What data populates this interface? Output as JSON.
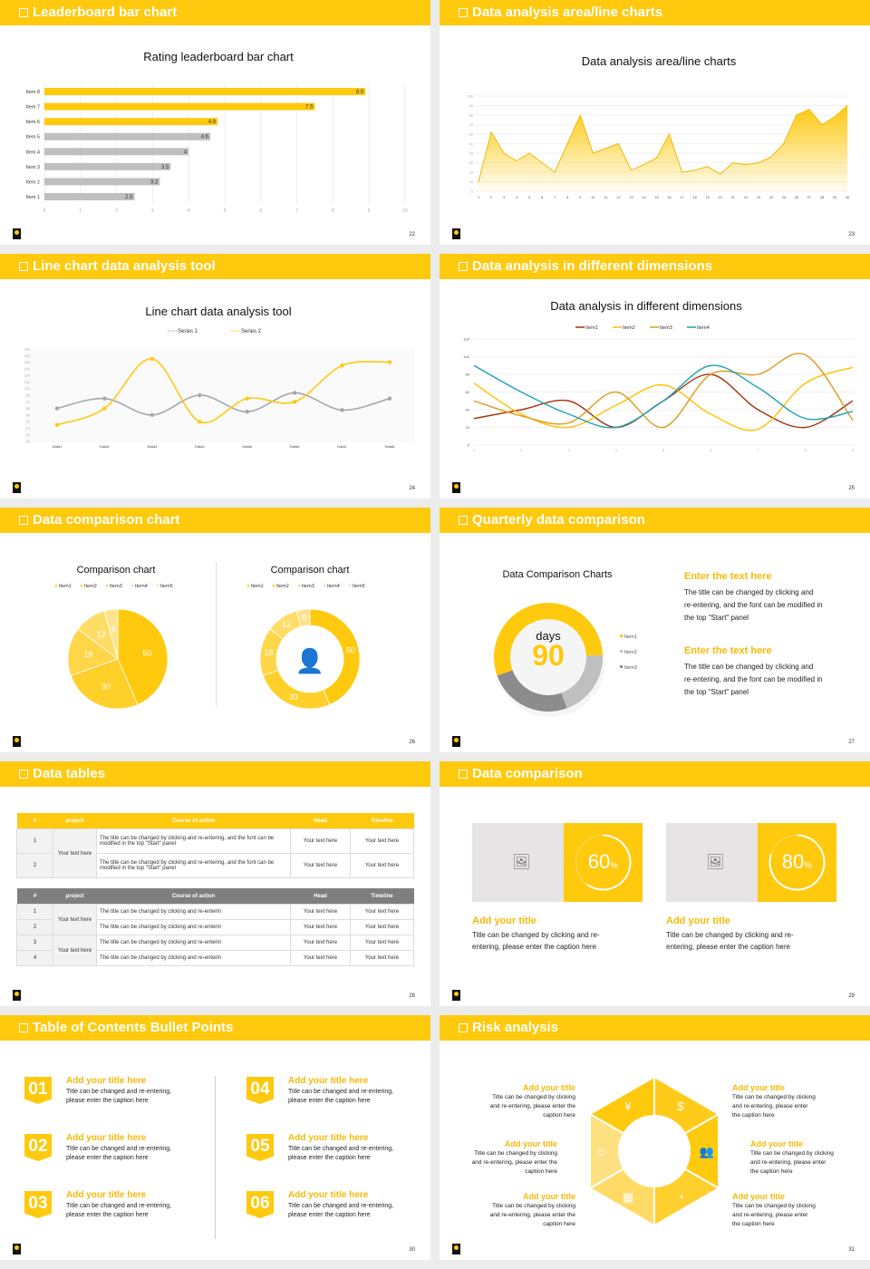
{
  "colors": {
    "accent": "#FFC90E",
    "gray": "#BFBFBF",
    "dark_gray": "#8C8C8C"
  },
  "slides": [
    {
      "header": "Leaderboard bar chart",
      "page": "22"
    },
    {
      "header": "Data analysis area/line charts",
      "page": "23"
    },
    {
      "header": "Line chart data analysis tool",
      "page": "24"
    },
    {
      "header": "Data analysis in different dimensions",
      "page": "25"
    },
    {
      "header": "Data comparison chart",
      "page": "26"
    },
    {
      "header": "Quarterly data comparison",
      "page": "27"
    },
    {
      "header": "Data tables",
      "page": "28"
    },
    {
      "header": "Data comparison",
      "page": "29"
    },
    {
      "header": "Table of Contents Bullet Points",
      "page": "30"
    },
    {
      "header": "Risk analysis",
      "page": "31"
    }
  ],
  "chart_data": [
    {
      "type": "bar",
      "orientation": "horizontal",
      "title": "Rating leaderboard bar chart",
      "categories": [
        "Item 1",
        "Item 2",
        "Item 3",
        "Item 4",
        "Item 5",
        "Item 6",
        "Item 7",
        "Item 8"
      ],
      "values": [
        2.5,
        3.2,
        3.5,
        4,
        4.6,
        4.8,
        7.5,
        8.9
      ],
      "bar_colors": [
        "#BFBFBF",
        "#BFBFBF",
        "#BFBFBF",
        "#BFBFBF",
        "#BFBFBF",
        "#FFC90E",
        "#FFC90E",
        "#FFC90E"
      ],
      "xlim": [
        0,
        10
      ],
      "xticks": [
        0,
        1,
        2,
        3,
        4,
        5,
        6,
        7,
        8,
        9,
        10
      ],
      "grid": true
    },
    {
      "type": "area",
      "title": "Data analysis area/line charts",
      "x": [
        1,
        2,
        3,
        4,
        5,
        6,
        7,
        8,
        9,
        10,
        11,
        12,
        13,
        14,
        15,
        16,
        17,
        18,
        19,
        20,
        21,
        22,
        23,
        24,
        25,
        26,
        27,
        28,
        29,
        30
      ],
      "values": [
        10,
        62,
        40,
        32,
        40,
        30,
        20,
        50,
        80,
        40,
        45,
        50,
        22,
        28,
        35,
        60,
        20,
        22,
        26,
        18,
        30,
        28,
        30,
        36,
        50,
        80,
        86,
        70,
        78,
        90
      ],
      "ylim": [
        0,
        100
      ],
      "yticks": [
        0,
        10,
        20,
        30,
        40,
        50,
        60,
        70,
        80,
        90,
        100
      ],
      "color": "#FFC90E",
      "grid": true
    },
    {
      "type": "line",
      "title": "Line chart data analysis tool",
      "smooth": true,
      "categories": [
        "Data1",
        "Data2",
        "Data3",
        "Data4",
        "Data5",
        "Data6",
        "Data7",
        "Data8"
      ],
      "series": [
        {
          "name": "Series 1",
          "color": "#A6A6A6",
          "values": [
            50,
            80,
            30,
            90,
            40,
            97,
            45,
            80
          ]
        },
        {
          "name": "Series 2",
          "color": "#FFC90E",
          "values": [
            0,
            50,
            200,
            10,
            80,
            70,
            180,
            190
          ]
        }
      ],
      "ylim": [
        -50,
        230
      ],
      "yticks": [
        230,
        210,
        190,
        170,
        150,
        130,
        110,
        90,
        70,
        50,
        30,
        10,
        -10,
        -30,
        -50
      ],
      "legend": "top"
    },
    {
      "type": "line",
      "title": "Data analysis in different dimensions",
      "smooth": true,
      "categories": [
        1,
        2,
        3,
        4,
        5,
        6,
        7,
        8,
        9
      ],
      "series": [
        {
          "name": "Item1",
          "color": "#A3320B",
          "values": [
            30,
            40,
            50,
            20,
            50,
            80,
            40,
            20,
            50
          ]
        },
        {
          "name": "Item2",
          "color": "#FFC000",
          "values": [
            70,
            35,
            20,
            45,
            68,
            35,
            18,
            70,
            88
          ]
        },
        {
          "name": "Item3",
          "color": "#DE9A1E",
          "values": [
            50,
            33,
            25,
            60,
            20,
            80,
            80,
            102,
            28
          ]
        },
        {
          "name": "Item4",
          "color": "#1BA3B8",
          "values": [
            90,
            60,
            35,
            20,
            50,
            90,
            65,
            30,
            38
          ]
        }
      ],
      "ylim": [
        0,
        120
      ],
      "yticks": [
        0,
        20,
        40,
        60,
        80,
        100,
        120
      ],
      "legend": "top",
      "grid": true
    },
    {
      "type": "pie",
      "title": "Comparison chart",
      "labels": [
        "Item1",
        "Item2",
        "Item3",
        "Item4",
        "Item5"
      ],
      "values": [
        50,
        30,
        18,
        12,
        5
      ],
      "colors": [
        "#FFC90E",
        "#FFCF2A",
        "#FFD648",
        "#FFDC66",
        "#FFE38A"
      ],
      "legend": "top"
    },
    {
      "type": "pie",
      "variant": "donut",
      "title": "Comparison chart",
      "labels": [
        "Item1",
        "Item2",
        "Item3",
        "Item4",
        "Item5"
      ],
      "values": [
        50,
        30,
        18,
        12,
        5
      ],
      "colors": [
        "#FFC90E",
        "#FFCF2A",
        "#FFD648",
        "#FFDC66",
        "#FFE38A"
      ],
      "legend": "top",
      "center_icon": "user-presentation-icon"
    },
    {
      "type": "pie",
      "variant": "donut",
      "title": "Data Comparison Charts",
      "labels": [
        "Item1",
        "Item2",
        "Item3"
      ],
      "values": [
        55,
        20,
        25
      ],
      "colors": [
        "#FFC90E",
        "#BFBFBF",
        "#8C8C8C"
      ],
      "legend": "right",
      "center_label": "days",
      "center_value": "90"
    }
  ],
  "quarterly": {
    "blocks": [
      {
        "title": "Enter the text here",
        "lines": [
          "The title can be changed by clicking and",
          "re-entering, and the font can be modified in",
          "the top \"Start\" panel"
        ]
      },
      {
        "title": "Enter the text here",
        "lines": [
          "The title can be changed by clicking and",
          "re-entering, and the font can be modified in",
          "the top \"Start\" panel"
        ]
      }
    ]
  },
  "tables": {
    "headers": [
      "#",
      "project",
      "Course of action",
      "Head",
      "Timeline"
    ],
    "table1": {
      "project": "Your text here",
      "rows": [
        {
          "n": "1",
          "action": "The title can be changed by clicking and re-entering, and the font can be modified in the top \"Start\" panel",
          "head": "Your text here",
          "timeline": "Your text here"
        },
        {
          "n": "2",
          "action": "The title can be changed by clicking and re-entering, and the font can be modified in the top \"Start\" panel",
          "head": "Your text here",
          "timeline": "Your text here"
        }
      ]
    },
    "table2": {
      "projects": [
        "Your text here",
        "Your text here"
      ],
      "rows": [
        {
          "n": "1",
          "action": "The title can be changed by clicking and re-enterin",
          "head": "Your text here",
          "timeline": "Your text here"
        },
        {
          "n": "2",
          "action": "The title can be changed by clicking and re-enterin",
          "head": "Your text here",
          "timeline": "Your text here"
        },
        {
          "n": "3",
          "action": "The title can be changed by clicking and re-enterin",
          "head": "Your text here",
          "timeline": "Your text here"
        },
        {
          "n": "4",
          "action": "The title can be changed by clicking and re-enterin",
          "head": "Your text here",
          "timeline": "Your text here"
        }
      ]
    }
  },
  "comparison": {
    "cards": [
      {
        "percent": 60,
        "value": "60",
        "unit": "%",
        "title": "Add your title",
        "lines": [
          "Title can be changed by clicking and re-",
          "entering, please enter the caption here"
        ],
        "icon": "add-image-icon"
      },
      {
        "percent": 80,
        "value": "80",
        "unit": "%",
        "title": "Add your title",
        "lines": [
          "Title can be changed by clicking and re-",
          "entering, please enter the caption here"
        ],
        "icon": "add-image-icon"
      }
    ]
  },
  "toc": {
    "items": [
      {
        "num": "01",
        "title": "Add your title here",
        "lines": [
          "Title can be changed and re-entering,",
          "please enter the caption here"
        ]
      },
      {
        "num": "02",
        "title": "Add your title here",
        "lines": [
          "Title can be changed and re-entering,",
          "please enter the caption here"
        ]
      },
      {
        "num": "03",
        "title": "Add your title here",
        "lines": [
          "Title can be changed and re-entering,",
          "please enter the caption here"
        ]
      },
      {
        "num": "04",
        "title": "Add your title here",
        "lines": [
          "Title can be changed and re-entering,",
          "please enter the caption here"
        ]
      },
      {
        "num": "05",
        "title": "Add your title here",
        "lines": [
          "Title can be changed and re-entering,",
          "please enter the caption here"
        ]
      },
      {
        "num": "06",
        "title": "Add your title here",
        "lines": [
          "Title can be changed and re-entering,",
          "please enter the caption here"
        ]
      }
    ]
  },
  "risk": {
    "left": [
      {
        "title": "Add your title",
        "lines": [
          "Title can be changed by clicking",
          "and re-entering, please enter the",
          "caption here"
        ]
      },
      {
        "title": "Add your title",
        "lines": [
          "Title can be changed by clicking",
          "and re-entering, please enter the",
          "caption here"
        ]
      },
      {
        "title": "Add your title",
        "lines": [
          "Title can be changed by clicking",
          "and re-entering, please enter the",
          "caption here"
        ]
      }
    ],
    "right": [
      {
        "title": "Add your title",
        "lines": [
          "Title can be changed by clicking",
          "and re-entering, please enter",
          "the caption here"
        ]
      },
      {
        "title": "Add your title",
        "lines": [
          "Title can be changed by clicking",
          "and re-entering, please enter",
          "the caption here"
        ]
      },
      {
        "title": "Add your title",
        "lines": [
          "Title can be changed by clicking",
          "and re-entering, please enter",
          "the caption here"
        ]
      }
    ],
    "segment_icons": [
      "money-bag-icon",
      "coins-icon",
      "people-icon",
      "pie-chart-icon",
      "building-icon",
      "person-icon"
    ],
    "segment_glyphs": [
      "¥",
      "$",
      "👥",
      "◔",
      "▦",
      "☺"
    ]
  }
}
